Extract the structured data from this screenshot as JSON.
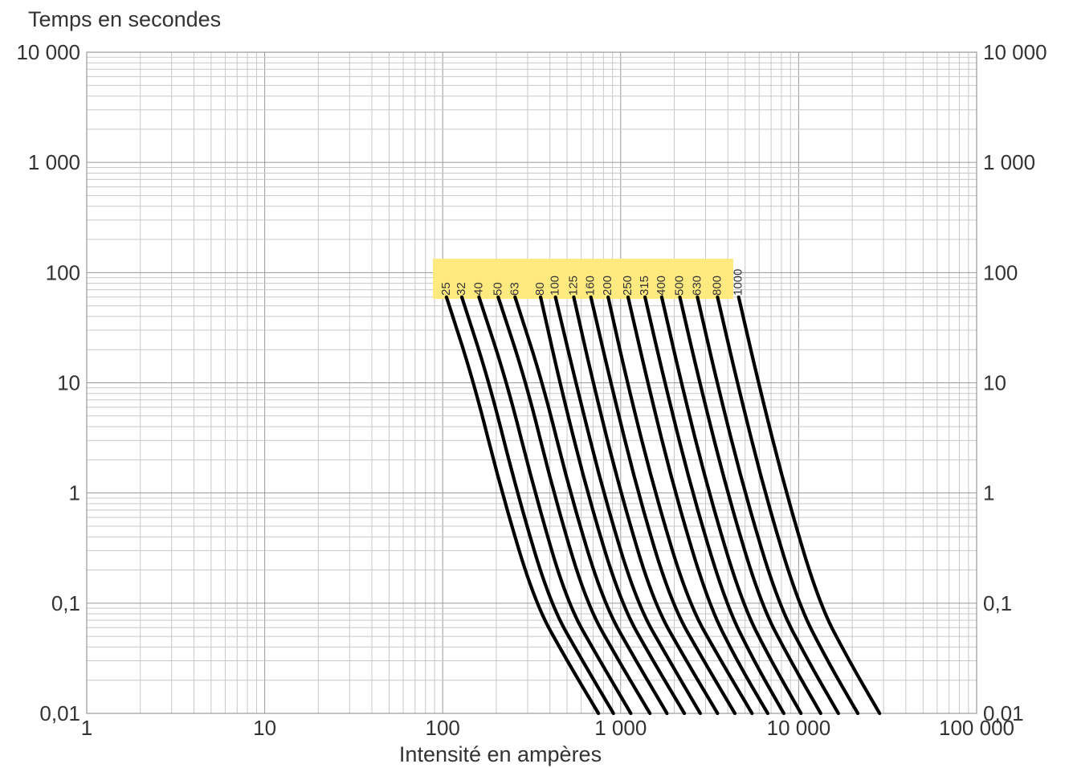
{
  "chart_data": {
    "type": "line",
    "title": "",
    "ylabel": "Temps en secondes",
    "xlabel": "Intensité en ampères",
    "x_scale": "log",
    "y_scale": "log",
    "xlim": [
      1,
      100000
    ],
    "ylim": [
      0.01,
      10000
    ],
    "grid": true,
    "x_ticks": [
      {
        "value": 1,
        "label": "1"
      },
      {
        "value": 10,
        "label": "10"
      },
      {
        "value": 100,
        "label": "100"
      },
      {
        "value": 1000,
        "label": "1 000"
      },
      {
        "value": 10000,
        "label": "10 000"
      },
      {
        "value": 100000,
        "label": "100 000"
      }
    ],
    "y_ticks": [
      {
        "value": 10000,
        "label": "10 000"
      },
      {
        "value": 1000,
        "label": "1 000"
      },
      {
        "value": 100,
        "label": "100"
      },
      {
        "value": 10,
        "label": "10"
      },
      {
        "value": 1,
        "label": "1"
      },
      {
        "value": 0.1,
        "label": "0,1"
      },
      {
        "value": 0.01,
        "label": "0,01"
      }
    ],
    "legend_box_color": "#ffea80",
    "curve_color": "#000000",
    "series": [
      {
        "name": "25",
        "points": [
          [
            105,
            60
          ],
          [
            150,
            10
          ],
          [
            215,
            1
          ],
          [
            330,
            0.1
          ],
          [
            500,
            0.03
          ],
          [
            750,
            0.01
          ]
        ]
      },
      {
        "name": "32",
        "points": [
          [
            128,
            60
          ],
          [
            183,
            10
          ],
          [
            262,
            1
          ],
          [
            400,
            0.1
          ],
          [
            610,
            0.03
          ],
          [
            910,
            0.01
          ]
        ]
      },
      {
        "name": "40",
        "points": [
          [
            160,
            60
          ],
          [
            230,
            10
          ],
          [
            330,
            1
          ],
          [
            500,
            0.1
          ],
          [
            765,
            0.03
          ],
          [
            1140,
            0.01
          ]
        ]
      },
      {
        "name": "50",
        "points": [
          [
            205,
            60
          ],
          [
            295,
            10
          ],
          [
            420,
            1
          ],
          [
            640,
            0.1
          ],
          [
            975,
            0.03
          ],
          [
            1460,
            0.01
          ]
        ]
      },
      {
        "name": "63",
        "points": [
          [
            255,
            60
          ],
          [
            365,
            10
          ],
          [
            520,
            1
          ],
          [
            800,
            0.1
          ],
          [
            1220,
            0.03
          ],
          [
            1820,
            0.01
          ]
        ]
      },
      {
        "name": "80",
        "points": [
          [
            355,
            60
          ],
          [
            455,
            10
          ],
          [
            650,
            1
          ],
          [
            1000,
            0.1
          ],
          [
            1520,
            0.03
          ],
          [
            2280,
            0.01
          ]
        ]
      },
      {
        "name": "100",
        "points": [
          [
            430,
            60
          ],
          [
            560,
            10
          ],
          [
            800,
            1
          ],
          [
            1230,
            0.1
          ],
          [
            1880,
            0.03
          ],
          [
            2800,
            0.01
          ]
        ]
      },
      {
        "name": "125",
        "points": [
          [
            545,
            60
          ],
          [
            700,
            10
          ],
          [
            1000,
            1
          ],
          [
            1530,
            0.1
          ],
          [
            2340,
            0.03
          ],
          [
            3500,
            0.01
          ]
        ]
      },
      {
        "name": "160",
        "points": [
          [
            680,
            60
          ],
          [
            880,
            10
          ],
          [
            1250,
            1
          ],
          [
            1920,
            0.1
          ],
          [
            2930,
            0.03
          ],
          [
            4380,
            0.01
          ]
        ]
      },
      {
        "name": "200",
        "points": [
          [
            850,
            60
          ],
          [
            1090,
            10
          ],
          [
            1560,
            1
          ],
          [
            2400,
            0.1
          ],
          [
            3660,
            0.03
          ],
          [
            5470,
            0.01
          ]
        ]
      },
      {
        "name": "250",
        "points": [
          [
            1100,
            60
          ],
          [
            1420,
            10
          ],
          [
            2020,
            1
          ],
          [
            3100,
            0.1
          ],
          [
            4500,
            0.03
          ],
          [
            6700,
            0.01
          ]
        ]
      },
      {
        "name": "315",
        "points": [
          [
            1370,
            60
          ],
          [
            1770,
            10
          ],
          [
            2530,
            1
          ],
          [
            3880,
            0.1
          ],
          [
            5600,
            0.03
          ],
          [
            8250,
            0.01
          ]
        ]
      },
      {
        "name": "400",
        "points": [
          [
            1700,
            60
          ],
          [
            2190,
            10
          ],
          [
            3130,
            1
          ],
          [
            4800,
            0.1
          ],
          [
            7000,
            0.03
          ],
          [
            10300,
            0.01
          ]
        ]
      },
      {
        "name": "500",
        "points": [
          [
            2150,
            60
          ],
          [
            2780,
            10
          ],
          [
            3980,
            1
          ],
          [
            6100,
            0.1
          ],
          [
            9000,
            0.03
          ],
          [
            13300,
            0.01
          ]
        ]
      },
      {
        "name": "630",
        "points": [
          [
            2700,
            60
          ],
          [
            3480,
            10
          ],
          [
            4980,
            1
          ],
          [
            7650,
            0.1
          ],
          [
            11300,
            0.03
          ],
          [
            16700,
            0.01
          ]
        ]
      },
      {
        "name": "800",
        "points": [
          [
            3500,
            60
          ],
          [
            4520,
            10
          ],
          [
            6460,
            1
          ],
          [
            9900,
            0.1
          ],
          [
            14500,
            0.03
          ],
          [
            21500,
            0.01
          ]
        ]
      },
      {
        "name": "1000",
        "points": [
          [
            4600,
            60
          ],
          [
            5940,
            10
          ],
          [
            8500,
            1
          ],
          [
            13000,
            0.1
          ],
          [
            19200,
            0.03
          ],
          [
            28500,
            0.01
          ]
        ]
      }
    ]
  }
}
